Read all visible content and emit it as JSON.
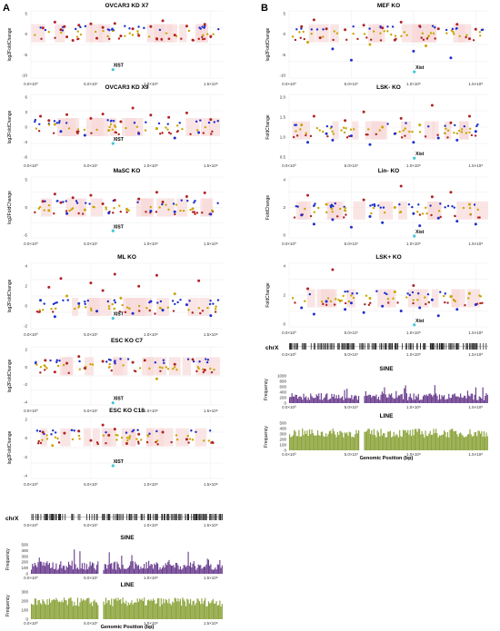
{
  "panel_labels": {
    "left": "A",
    "right": "B"
  },
  "colors": {
    "high": "#b22222",
    "mid": "#c9a500",
    "low": "#1f2ecc",
    "escape": "#40c8d8",
    "band": "#f8dada",
    "sine": "#6a3d8e",
    "line": "#8ba33a",
    "chrx": "#222222"
  },
  "genome_axis": {
    "ticks": [
      "0.0×10⁰",
      "5.0×10⁷",
      "1.0×10⁸",
      "1.5×10⁸"
    ],
    "xlabel": "Genomic Position (bp)"
  },
  "chart_data": [
    {
      "id": "ovcar3_x7",
      "type": "scatter",
      "title": "OVCAR3 KD X7",
      "ylabel": "log2FoldChange",
      "ylim": [
        -10,
        5
      ],
      "yticks": [
        "5",
        "0",
        "-5",
        "-10"
      ],
      "annotation": "XIST",
      "annotation_x": 73000000.0,
      "annotation_y": -7.5,
      "points": [
        [
          10000000.0,
          1.2
        ],
        [
          20000000.0,
          2.5
        ],
        [
          25000000.0,
          0.8
        ],
        [
          28000000.0,
          1.5
        ],
        [
          30000000.0,
          -0.8
        ],
        [
          35000000.0,
          -1.6
        ],
        [
          40000000.0,
          1.8
        ],
        [
          50000000.0,
          2.1
        ],
        [
          55000000.0,
          -1.1
        ],
        [
          60000000.0,
          1.3
        ],
        [
          70000000.0,
          2.2
        ],
        [
          75000000.0,
          -0.6
        ],
        [
          85000000.0,
          1.0
        ],
        [
          90000000.0,
          -0.5
        ],
        [
          100000000.0,
          1.5
        ],
        [
          105000000.0,
          -1.2
        ],
        [
          110000000.0,
          2.8
        ],
        [
          120000000.0,
          -0.4
        ],
        [
          130000000.0,
          1.6
        ],
        [
          135000000.0,
          -1.5
        ],
        [
          145000000.0,
          2.0
        ],
        [
          150000000.0,
          -0.7
        ]
      ]
    },
    {
      "id": "ovcar3_x9",
      "type": "scatter",
      "title": "OVCAR3 KD X9",
      "ylabel": "log2FoldChange",
      "ylim": [
        -6,
        6
      ],
      "yticks": [
        "6",
        "3",
        "0",
        "-3",
        "-6"
      ],
      "annotation": "XIST",
      "annotation_x": 73000000.0,
      "annotation_y": -2.5,
      "points": [
        [
          8000000.0,
          2.0
        ],
        [
          15000000.0,
          1.2
        ],
        [
          20000000.0,
          0.5
        ],
        [
          25000000.0,
          -0.8
        ],
        [
          30000000.0,
          2.3
        ],
        [
          45000000.0,
          -1.5
        ],
        [
          50000000.0,
          1.6
        ],
        [
          60000000.0,
          2.4
        ],
        [
          65000000.0,
          -0.6
        ],
        [
          75000000.0,
          1.0
        ],
        [
          85000000.0,
          3.5
        ],
        [
          90000000.0,
          -1.2
        ],
        [
          100000000.0,
          2.2
        ],
        [
          105000000.0,
          -0.3
        ],
        [
          115000000.0,
          1.8
        ],
        [
          120000000.0,
          -2.0
        ],
        [
          130000000.0,
          2.6
        ],
        [
          140000000.0,
          -1.0
        ],
        [
          150000000.0,
          1.4
        ]
      ]
    },
    {
      "id": "masc_ko",
      "type": "scatter",
      "title": "MaSC KO",
      "ylabel": "log2FoldChange",
      "ylim": [
        -5,
        5
      ],
      "yticks": [
        "5",
        "0",
        "-5"
      ],
      "annotation": "XIST",
      "annotation_x": 73000000.0,
      "annotation_y": -3.4,
      "points": [
        [
          10000000.0,
          1.0
        ],
        [
          15000000.0,
          -0.5
        ],
        [
          20000000.0,
          2.2
        ],
        [
          25000000.0,
          0.8
        ],
        [
          30000000.0,
          -1.0
        ],
        [
          35000000.0,
          1.6
        ],
        [
          45000000.0,
          -0.4
        ],
        [
          50000000.0,
          2.0
        ],
        [
          60000000.0,
          0.6
        ],
        [
          65000000.0,
          -0.9
        ],
        [
          70000000.0,
          1.2
        ],
        [
          80000000.0,
          -0.3
        ],
        [
          90000000.0,
          1.4
        ],
        [
          100000000.0,
          -0.6
        ],
        [
          105000000.0,
          2.5
        ],
        [
          110000000.0,
          0.9
        ],
        [
          120000000.0,
          -0.7
        ],
        [
          130000000.0,
          1.8
        ],
        [
          135000000.0,
          -0.2
        ],
        [
          145000000.0,
          2.4
        ],
        [
          150000000.0,
          -1.1
        ]
      ]
    },
    {
      "id": "ml_ko",
      "type": "scatter",
      "title": "ML KO",
      "ylabel": "log2FoldChange",
      "ylim": [
        -2,
        4
      ],
      "yticks": [
        "4",
        "2",
        "0",
        "-2"
      ],
      "annotation": "XIST",
      "annotation_x": 73000000.0,
      "annotation_y": -0.8,
      "points": [
        [
          8000000.0,
          0.6
        ],
        [
          15000000.0,
          1.8
        ],
        [
          20000000.0,
          -0.9
        ],
        [
          25000000.0,
          2.6
        ],
        [
          30000000.0,
          1.0
        ],
        [
          40000000.0,
          0.3
        ],
        [
          50000000.0,
          2.2
        ],
        [
          55000000.0,
          -0.4
        ],
        [
          60000000.0,
          1.5
        ],
        [
          70000000.0,
          3.0
        ],
        [
          75000000.0,
          0.8
        ],
        [
          85000000.0,
          -0.6
        ],
        [
          90000000.0,
          1.9
        ],
        [
          100000000.0,
          0.5
        ],
        [
          105000000.0,
          2.9
        ],
        [
          110000000.0,
          -0.3
        ],
        [
          120000000.0,
          1.2
        ],
        [
          130000000.0,
          0.2
        ],
        [
          140000000.0,
          2.4
        ],
        [
          150000000.0,
          -0.8
        ]
      ]
    },
    {
      "id": "esc_ko_c7",
      "type": "scatter",
      "title": "ESC KO C7",
      "ylabel": "log2FoldChange",
      "ylim": [
        -4,
        2
      ],
      "yticks": [
        "2",
        "0",
        "-2",
        "-4"
      ],
      "annotation": "XIST",
      "annotation_x": 73000000.0,
      "annotation_y": -3.5,
      "points": [
        [
          12000000.0,
          0.6
        ],
        [
          20000000.0,
          -0.6
        ],
        [
          30000000.0,
          0.3
        ],
        [
          40000000.0,
          1.0
        ],
        [
          45000000.0,
          -0.2
        ],
        [
          60000000.0,
          0.5
        ],
        [
          85000000.0,
          0.4
        ],
        [
          95000000.0,
          0.6
        ],
        [
          105000000.0,
          -1.3
        ],
        [
          120000000.0,
          0.2
        ],
        [
          135000000.0,
          0.7
        ],
        [
          145000000.0,
          -0.4
        ]
      ]
    },
    {
      "id": "esc_ko_c18",
      "type": "scatter",
      "title": "ESC KO C18",
      "ylabel": "log2FoldChange",
      "ylim": [
        -4,
        2
      ],
      "yticks": [
        "2",
        "0",
        "-2",
        "-4"
      ],
      "annotation": "XIST",
      "annotation_x": 73000000.0,
      "annotation_y": -2.5,
      "points": [
        [
          10000000.0,
          0.5
        ],
        [
          18000000.0,
          -0.8
        ],
        [
          28000000.0,
          0.4
        ],
        [
          40000000.0,
          0.6
        ],
        [
          50000000.0,
          -0.3
        ],
        [
          60000000.0,
          1.2
        ],
        [
          65000000.0,
          0.2
        ],
        [
          70000000.0,
          0.8
        ],
        [
          80000000.0,
          -0.6
        ],
        [
          90000000.0,
          0.3
        ],
        [
          110000000.0,
          0.5
        ],
        [
          130000000.0,
          -0.2
        ]
      ]
    },
    {
      "id": "mef_ko",
      "type": "scatter",
      "title": "MEF KO",
      "ylabel": "log2FoldChange",
      "ylim": [
        -10,
        5
      ],
      "yticks": [
        "5",
        "0",
        "-5",
        "-10"
      ],
      "annotation": "Xist",
      "annotation_x": 105000000.0,
      "annotation_y": -8.0,
      "points": [
        [
          10000000.0,
          1.5
        ],
        [
          15000000.0,
          -2.0
        ],
        [
          20000000.0,
          3.0
        ],
        [
          25000000.0,
          -1.0
        ],
        [
          30000000.0,
          1.0
        ],
        [
          35000000.0,
          -3.5
        ],
        [
          45000000.0,
          0.8
        ],
        [
          50000000.0,
          -6.0
        ],
        [
          60000000.0,
          1.8
        ],
        [
          65000000.0,
          -2.5
        ],
        [
          75000000.0,
          1.2
        ],
        [
          85000000.0,
          -1.5
        ],
        [
          90000000.0,
          2.5
        ],
        [
          100000000.0,
          -4.0
        ],
        [
          105000000.0,
          1.6
        ],
        [
          110000000.0,
          -2.8
        ],
        [
          120000000.0,
          1.0
        ],
        [
          130000000.0,
          -5.5
        ],
        [
          135000000.0,
          2.0
        ],
        [
          145000000.0,
          -1.2
        ],
        [
          150000000.0,
          0.9
        ]
      ]
    },
    {
      "id": "lsk_minus_ko",
      "type": "scatter",
      "title": "LSK- KO",
      "ylabel": "FoldChange",
      "ylim": [
        0.5,
        2
      ],
      "yticks": [
        "2.0",
        "1.5",
        "1.0",
        "0.5"
      ],
      "annotation": "Xist",
      "annotation_x": 105000000.0,
      "annotation_y": 0.6,
      "points": [
        [
          10000000.0,
          1.3
        ],
        [
          15000000.0,
          0.9
        ],
        [
          20000000.0,
          1.5
        ],
        [
          30000000.0,
          1.1
        ],
        [
          35000000.0,
          0.95
        ],
        [
          45000000.0,
          1.4
        ],
        [
          50000000.0,
          1.05
        ],
        [
          60000000.0,
          1.6
        ],
        [
          65000000.0,
          0.85
        ],
        [
          75000000.0,
          1.25
        ],
        [
          85000000.0,
          1.1
        ],
        [
          90000000.0,
          1.45
        ],
        [
          100000000.0,
          0.9
        ],
        [
          105000000.0,
          1.3
        ],
        [
          115000000.0,
          1.75
        ],
        [
          120000000.0,
          1.0
        ],
        [
          130000000.0,
          1.35
        ],
        [
          135000000.0,
          0.95
        ],
        [
          145000000.0,
          1.5
        ],
        [
          150000000.0,
          1.15
        ]
      ]
    },
    {
      "id": "lin_minus_ko",
      "type": "scatter",
      "title": "Lin- KO",
      "ylabel": "FoldChange",
      "ylim": [
        0,
        4
      ],
      "yticks": [
        "4",
        "2",
        "0"
      ],
      "annotation": "Xist",
      "annotation_x": 105000000.0,
      "annotation_y": 0.3,
      "points": [
        [
          10000000.0,
          1.5
        ],
        [
          15000000.0,
          2.8
        ],
        [
          20000000.0,
          0.9
        ],
        [
          30000000.0,
          2.2
        ],
        [
          35000000.0,
          1.2
        ],
        [
          45000000.0,
          1.8
        ],
        [
          50000000.0,
          0.7
        ],
        [
          60000000.0,
          2.5
        ],
        [
          65000000.0,
          1.4
        ],
        [
          75000000.0,
          1.0
        ],
        [
          85000000.0,
          2.0
        ],
        [
          90000000.0,
          3.4
        ],
        [
          100000000.0,
          1.6
        ],
        [
          105000000.0,
          0.8
        ],
        [
          115000000.0,
          2.7
        ],
        [
          120000000.0,
          1.3
        ],
        [
          130000000.0,
          3.0
        ],
        [
          135000000.0,
          1.1
        ],
        [
          145000000.0,
          2.2
        ],
        [
          150000000.0,
          0.9
        ]
      ]
    },
    {
      "id": "lsk_plus_ko",
      "type": "scatter",
      "title": "LSK+ KO",
      "ylabel": "FoldChange",
      "ylim": [
        0,
        4
      ],
      "yticks": [
        "4",
        "2",
        "0"
      ],
      "annotation": "Xist",
      "annotation_x": 105000000.0,
      "annotation_y": 0.3,
      "points": [
        [
          10000000.0,
          1.2
        ],
        [
          15000000.0,
          2.4
        ],
        [
          20000000.0,
          0.8
        ],
        [
          30000000.0,
          1.6
        ],
        [
          35000000.0,
          3.6
        ],
        [
          45000000.0,
          1.1
        ],
        [
          50000000.0,
          1.5
        ],
        [
          60000000.0,
          0.9
        ],
        [
          65000000.0,
          1.8
        ],
        [
          75000000.0,
          1.3
        ],
        [
          85000000.0,
          2.2
        ],
        [
          90000000.0,
          1.0
        ],
        [
          100000000.0,
          2.6
        ],
        [
          105000000.0,
          1.2
        ],
        [
          115000000.0,
          1.7
        ],
        [
          120000000.0,
          0.7
        ],
        [
          130000000.0,
          1.9
        ],
        [
          135000000.0,
          1.1
        ],
        [
          145000000.0,
          2.1
        ],
        [
          150000000.0,
          1.4
        ]
      ]
    }
  ],
  "tracks": {
    "chrx_label": "chrX",
    "sine_title": "SINE",
    "line_title": "LINE",
    "ylabel": "Frequency",
    "left_sine_ticks": [
      "500",
      "400",
      "300",
      "200",
      "100",
      "0"
    ],
    "left_line_ticks": [
      "300",
      "200",
      "100",
      "0"
    ],
    "right_sine_ticks": [
      "1000",
      "800",
      "600",
      "400",
      "200",
      "0"
    ],
    "right_line_ticks": [
      "500",
      "400",
      "300",
      "200",
      "100",
      "0"
    ]
  }
}
